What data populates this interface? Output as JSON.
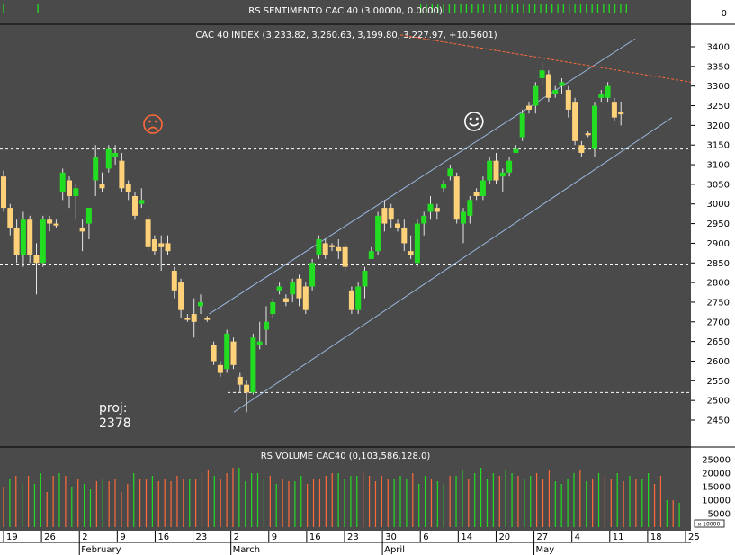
{
  "colors": {
    "background": "#4a4a4a",
    "axis_background": "#ffffff",
    "up": "#22dd22",
    "down": "#ffd27a",
    "wick": "#e6e6e6",
    "text": "#ffffff",
    "axis_text": "#000000",
    "volume_up": "#22dd22",
    "volume_down": "#ff6a3a",
    "trend_line": "#9ab8e0",
    "resistance_line": "#ff6a3a"
  },
  "sentiment_panel": {
    "title": "RS SENTIMENTO CAC 40 (3.00000, 0.0000)",
    "axis_label": "0",
    "bars_per_session": [
      1,
      0,
      0,
      0,
      0,
      0,
      1,
      0,
      0,
      0,
      0,
      0,
      0,
      0,
      0,
      0,
      0,
      0,
      0,
      0,
      0,
      0,
      0,
      0,
      0,
      0,
      0,
      0,
      0,
      0,
      0,
      0,
      0,
      0,
      0,
      0,
      0,
      0,
      0,
      0,
      0,
      0,
      0,
      0,
      0,
      0,
      0,
      0,
      0,
      0,
      0,
      0,
      0,
      0,
      0,
      0,
      0,
      0,
      0,
      0,
      0,
      0,
      0,
      0,
      0,
      0,
      0,
      0,
      0,
      0,
      0,
      0,
      0,
      1,
      1,
      1,
      1,
      1,
      1,
      1,
      1,
      1,
      1,
      1,
      1,
      1,
      1,
      1,
      1,
      1,
      1,
      1,
      1,
      1,
      1,
      1,
      1,
      1,
      1,
      1,
      1,
      1,
      1,
      1,
      1,
      1,
      1,
      1,
      1,
      1
    ]
  },
  "chart_data": {
    "type": "candlestick",
    "title": "CAC 40 INDEX (3,233.82, 3,260.63, 3,199.80, 3,227.97, +10.5601)",
    "ylim": [
      2400,
      3450
    ],
    "y_ticks": [
      2450,
      2500,
      2550,
      2600,
      2650,
      2700,
      2750,
      2800,
      2850,
      2900,
      2950,
      3000,
      3050,
      3100,
      3150,
      3200,
      3250,
      3300,
      3350,
      3400
    ],
    "candles": [
      {
        "o": 3070,
        "h": 3085,
        "l": 2980,
        "c": 2990
      },
      {
        "o": 2990,
        "h": 3000,
        "l": 2920,
        "c": 2940
      },
      {
        "o": 2940,
        "h": 2960,
        "l": 2850,
        "c": 2870
      },
      {
        "o": 2870,
        "h": 2980,
        "l": 2840,
        "c": 2960
      },
      {
        "o": 2960,
        "h": 2970,
        "l": 2850,
        "c": 2870
      },
      {
        "o": 2870,
        "h": 2900,
        "l": 2770,
        "c": 2850
      },
      {
        "o": 2850,
        "h": 2970,
        "l": 2840,
        "c": 2960
      },
      {
        "o": 2960,
        "h": 2970,
        "l": 2930,
        "c": 2950
      },
      {
        "o": 2950,
        "h": 2960,
        "l": 2940,
        "c": 2945
      },
      {
        "o": 3030,
        "h": 3090,
        "l": 3010,
        "c": 3080
      },
      {
        "o": 3060,
        "h": 3070,
        "l": 2990,
        "c": 3020
      },
      {
        "o": 3020,
        "h": 3050,
        "l": 2960,
        "c": 3040
      },
      {
        "o": 2940,
        "h": 2960,
        "l": 2880,
        "c": 2930
      },
      {
        "o": 2950,
        "h": 2990,
        "l": 2910,
        "c": 2990
      },
      {
        "o": 3060,
        "h": 3150,
        "l": 3020,
        "c": 3120
      },
      {
        "o": 3050,
        "h": 3080,
        "l": 3030,
        "c": 3040
      },
      {
        "o": 3090,
        "h": 3150,
        "l": 3080,
        "c": 3140
      },
      {
        "o": 3120,
        "h": 3150,
        "l": 3100,
        "c": 3130
      },
      {
        "o": 3110,
        "h": 3130,
        "l": 3030,
        "c": 3040
      },
      {
        "o": 3050,
        "h": 3060,
        "l": 3010,
        "c": 3030
      },
      {
        "o": 3020,
        "h": 3030,
        "l": 2960,
        "c": 2970
      },
      {
        "o": 3000,
        "h": 3040,
        "l": 2990,
        "c": 3010
      },
      {
        "o": 2960,
        "h": 2970,
        "l": 2880,
        "c": 2890
      },
      {
        "o": 2910,
        "h": 2920,
        "l": 2870,
        "c": 2880
      },
      {
        "o": 2900,
        "h": 2920,
        "l": 2830,
        "c": 2890
      },
      {
        "o": 2900,
        "h": 2920,
        "l": 2870,
        "c": 2880
      },
      {
        "o": 2830,
        "h": 2840,
        "l": 2760,
        "c": 2780
      },
      {
        "o": 2800,
        "h": 2810,
        "l": 2710,
        "c": 2730
      },
      {
        "o": 2710,
        "h": 2720,
        "l": 2700,
        "c": 2705
      },
      {
        "o": 2720,
        "h": 2760,
        "l": 2660,
        "c": 2700
      },
      {
        "o": 2740,
        "h": 2770,
        "l": 2720,
        "c": 2750
      },
      {
        "o": 2710,
        "h": 2715,
        "l": 2700,
        "c": 2705
      },
      {
        "o": 2640,
        "h": 2650,
        "l": 2590,
        "c": 2600
      },
      {
        "o": 2590,
        "h": 2600,
        "l": 2560,
        "c": 2570
      },
      {
        "o": 2580,
        "h": 2680,
        "l": 2570,
        "c": 2670
      },
      {
        "o": 2650,
        "h": 2660,
        "l": 2580,
        "c": 2590
      },
      {
        "o": 2560,
        "h": 2570,
        "l": 2520,
        "c": 2540
      },
      {
        "o": 2540,
        "h": 2550,
        "l": 2470,
        "c": 2520
      },
      {
        "o": 2520,
        "h": 2670,
        "l": 2515,
        "c": 2660
      },
      {
        "o": 2640,
        "h": 2700,
        "l": 2630,
        "c": 2650
      },
      {
        "o": 2680,
        "h": 2740,
        "l": 2640,
        "c": 2700
      },
      {
        "o": 2720,
        "h": 2760,
        "l": 2710,
        "c": 2750
      },
      {
        "o": 2780,
        "h": 2800,
        "l": 2770,
        "c": 2790
      },
      {
        "o": 2760,
        "h": 2770,
        "l": 2740,
        "c": 2750
      },
      {
        "o": 2770,
        "h": 2810,
        "l": 2750,
        "c": 2800
      },
      {
        "o": 2810,
        "h": 2820,
        "l": 2740,
        "c": 2760
      },
      {
        "o": 2790,
        "h": 2800,
        "l": 2720,
        "c": 2730
      },
      {
        "o": 2790,
        "h": 2860,
        "l": 2780,
        "c": 2850
      },
      {
        "o": 2870,
        "h": 2920,
        "l": 2860,
        "c": 2910
      },
      {
        "o": 2900,
        "h": 2910,
        "l": 2860,
        "c": 2870
      },
      {
        "o": 2895,
        "h": 2900,
        "l": 2880,
        "c": 2890
      },
      {
        "o": 2890,
        "h": 2910,
        "l": 2860,
        "c": 2880
      },
      {
        "o": 2890,
        "h": 2900,
        "l": 2830,
        "c": 2840
      },
      {
        "o": 2780,
        "h": 2790,
        "l": 2720,
        "c": 2730
      },
      {
        "o": 2730,
        "h": 2800,
        "l": 2720,
        "c": 2790
      },
      {
        "o": 2790,
        "h": 2840,
        "l": 2760,
        "c": 2830
      },
      {
        "o": 2860,
        "h": 2890,
        "l": 2860,
        "c": 2880
      },
      {
        "o": 2880,
        "h": 2980,
        "l": 2870,
        "c": 2970
      },
      {
        "o": 2990,
        "h": 3010,
        "l": 2930,
        "c": 2950
      },
      {
        "o": 2990,
        "h": 3000,
        "l": 2940,
        "c": 2960
      },
      {
        "o": 2950,
        "h": 2960,
        "l": 2930,
        "c": 2940
      },
      {
        "o": 2940,
        "h": 2960,
        "l": 2880,
        "c": 2900
      },
      {
        "o": 2880,
        "h": 2920,
        "l": 2860,
        "c": 2870
      },
      {
        "o": 2850,
        "h": 2960,
        "l": 2840,
        "c": 2950
      },
      {
        "o": 2950,
        "h": 2980,
        "l": 2920,
        "c": 2970
      },
      {
        "o": 2980,
        "h": 3020,
        "l": 2960,
        "c": 3000
      },
      {
        "o": 2990,
        "h": 3000,
        "l": 2960,
        "c": 2980
      },
      {
        "o": 3040,
        "h": 3060,
        "l": 3030,
        "c": 3050
      },
      {
        "o": 3070,
        "h": 3100,
        "l": 3060,
        "c": 3090
      },
      {
        "o": 3070,
        "h": 3080,
        "l": 2950,
        "c": 2960
      },
      {
        "o": 2950,
        "h": 2990,
        "l": 2900,
        "c": 2980
      },
      {
        "o": 2970,
        "h": 3020,
        "l": 2950,
        "c": 3010
      },
      {
        "o": 3030,
        "h": 3040,
        "l": 3010,
        "c": 3020
      },
      {
        "o": 3020,
        "h": 3070,
        "l": 3010,
        "c": 3060
      },
      {
        "o": 3060,
        "h": 3120,
        "l": 3050,
        "c": 3110
      },
      {
        "o": 3110,
        "h": 3130,
        "l": 3050,
        "c": 3060
      },
      {
        "o": 3070,
        "h": 3090,
        "l": 3030,
        "c": 3080
      },
      {
        "o": 3080,
        "h": 3120,
        "l": 3070,
        "c": 3110
      },
      {
        "o": 3130,
        "h": 3150,
        "l": 3130,
        "c": 3140
      },
      {
        "o": 3170,
        "h": 3240,
        "l": 3160,
        "c": 3230
      },
      {
        "o": 3250,
        "h": 3260,
        "l": 3230,
        "c": 3240
      },
      {
        "o": 3250,
        "h": 3310,
        "l": 3230,
        "c": 3300
      },
      {
        "o": 3320,
        "h": 3360,
        "l": 3300,
        "c": 3340
      },
      {
        "o": 3330,
        "h": 3340,
        "l": 3260,
        "c": 3270
      },
      {
        "o": 3280,
        "h": 3300,
        "l": 3270,
        "c": 3290
      },
      {
        "o": 3300,
        "h": 3320,
        "l": 3280,
        "c": 3310
      },
      {
        "o": 3290,
        "h": 3300,
        "l": 3220,
        "c": 3240
      },
      {
        "o": 3260,
        "h": 3270,
        "l": 3150,
        "c": 3160
      },
      {
        "o": 3150,
        "h": 3160,
        "l": 3120,
        "c": 3130
      },
      {
        "o": 3180,
        "h": 3185,
        "l": 3170,
        "c": 3175
      },
      {
        "o": 3140,
        "h": 3260,
        "l": 3120,
        "c": 3250
      },
      {
        "o": 3270,
        "h": 3290,
        "l": 3260,
        "c": 3280
      },
      {
        "o": 3270,
        "h": 3310,
        "l": 3260,
        "c": 3300
      },
      {
        "o": 3260,
        "h": 3270,
        "l": 3210,
        "c": 3220
      },
      {
        "o": 3233.82,
        "h": 3260.63,
        "l": 3199.8,
        "c": 3227.97
      }
    ],
    "annotations": {
      "support_1": 3140,
      "support_2": 2845,
      "support_3": 2520,
      "channel_lower": {
        "i1": 37,
        "v1": 2470,
        "i2": 108,
        "v2": 3220
      },
      "channel_upper": {
        "i1": 33,
        "v1": 2720,
        "i2": 102,
        "v2": 3420
      },
      "resistance": {
        "i1": 64,
        "v1": 3430,
        "i2": 110,
        "v2": 3310
      },
      "sad_face_index": 20,
      "sad_face_value": 3170,
      "happy_face_index": 76,
      "happy_face_value": 3180,
      "proj_label": "proj:",
      "proj_value": "2378"
    },
    "volume_panel": {
      "title": "RS VOLUME CAC40 (0,103,586,128.0)",
      "ylim": [
        0,
        27000
      ],
      "y_ticks": [
        5000,
        10000,
        15000,
        20000,
        25000
      ],
      "scale_label": "x 10000",
      "values": [
        15000,
        18000,
        19000,
        16000,
        19000,
        16000,
        20000,
        13000,
        19000,
        20000,
        19000,
        15000,
        18000,
        16000,
        14000,
        17000,
        18000,
        17000,
        18000,
        13000,
        16000,
        20000,
        18000,
        18000,
        19000,
        17000,
        18000,
        17000,
        19000,
        18000,
        18000,
        18000,
        20000,
        21000,
        19000,
        18000,
        20000,
        22000,
        22000,
        17000,
        20000,
        20000,
        18000,
        19000,
        16000,
        18000,
        17000,
        17000,
        19000,
        16000,
        18000,
        18000,
        19000,
        20000,
        20000,
        18000,
        19000,
        19000,
        20000,
        19000,
        17000,
        19000,
        18000,
        18000,
        19000,
        18000,
        20000,
        16000,
        19000,
        18000,
        17000,
        16000,
        19000,
        19000,
        21000,
        18000,
        20000,
        22000,
        18000,
        20000,
        19000,
        21000,
        20000,
        19000,
        18000,
        19000,
        20000,
        18000,
        21000,
        17000,
        16000,
        18000,
        20000,
        21000,
        17000,
        18000,
        20000,
        19000,
        18000,
        20000,
        17000,
        19000,
        18000,
        18000,
        20000,
        16000,
        19000,
        10000,
        10000,
        9000
      ],
      "up": [
        0,
        1,
        0,
        1,
        0,
        1,
        1,
        0,
        0,
        1,
        0,
        1,
        0,
        1,
        1,
        0,
        1,
        0,
        0,
        0,
        0,
        1,
        0,
        0,
        1,
        0,
        0,
        0,
        0,
        0,
        1,
        0,
        0,
        0,
        1,
        0,
        0,
        0,
        1,
        1,
        1,
        1,
        1,
        0,
        1,
        0,
        0,
        1,
        1,
        0,
        0,
        0,
        0,
        0,
        1,
        1,
        1,
        1,
        0,
        0,
        0,
        0,
        0,
        1,
        1,
        1,
        0,
        1,
        1,
        0,
        1,
        1,
        0,
        1,
        1,
        0,
        1,
        1,
        1,
        1,
        0,
        1,
        1,
        0,
        1,
        1,
        0,
        0,
        0,
        1,
        1,
        1,
        1,
        0,
        1,
        0,
        1,
        0,
        0,
        1,
        0,
        1,
        0,
        1,
        1,
        0,
        0,
        1,
        0,
        1
      ]
    },
    "x_axis": {
      "day_labels": [
        {
          "index": 0,
          "label": "19"
        },
        {
          "index": 5,
          "label": "26"
        },
        {
          "index": 10,
          "label": "2"
        },
        {
          "index": 15,
          "label": "9"
        },
        {
          "index": 20,
          "label": "16"
        },
        {
          "index": 25,
          "label": "23"
        },
        {
          "index": 30,
          "label": "2"
        },
        {
          "index": 35,
          "label": "9"
        },
        {
          "index": 40,
          "label": "16"
        },
        {
          "index": 45,
          "label": "23"
        },
        {
          "index": 50,
          "label": "30"
        },
        {
          "index": 55,
          "label": "6"
        },
        {
          "index": 60,
          "label": "14"
        },
        {
          "index": 65,
          "label": "20"
        },
        {
          "index": 70,
          "label": "27"
        },
        {
          "index": 75,
          "label": "4"
        },
        {
          "index": 80,
          "label": "11"
        },
        {
          "index": 85,
          "label": "18"
        },
        {
          "index": 90,
          "label": "25"
        }
      ],
      "month_labels": [
        {
          "index": 10,
          "label": "February"
        },
        {
          "index": 30,
          "label": "March"
        },
        {
          "index": 50,
          "label": "April"
        },
        {
          "index": 70,
          "label": "May"
        }
      ]
    }
  }
}
